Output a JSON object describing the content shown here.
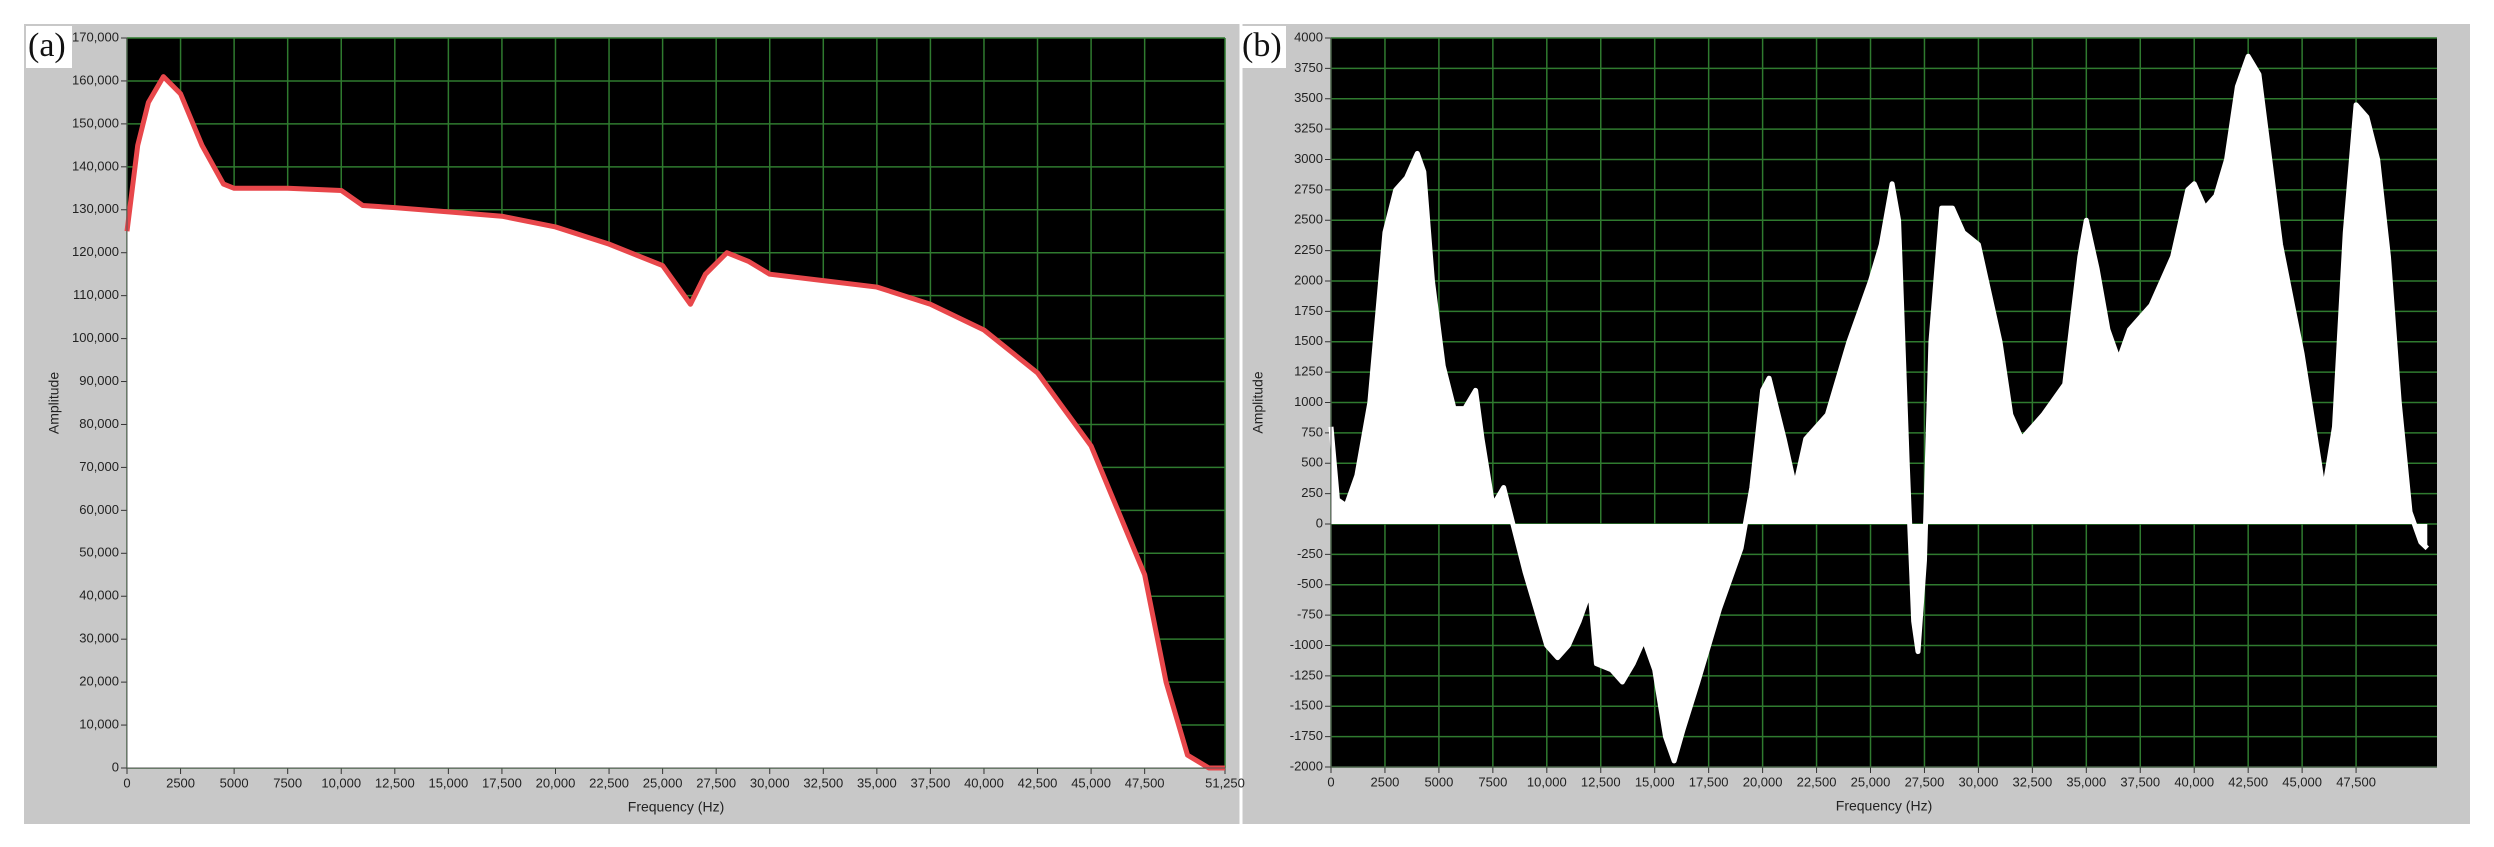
{
  "chart_data": [
    {
      "type": "area",
      "panel_label": "(a)",
      "xlabel": "Frequency (Hz)",
      "ylabel": "Amplitude",
      "background": "#000000",
      "grid": true,
      "grid_color": "#2f7a2f",
      "fill_color": "#ffffff",
      "line_color": "#e8474b",
      "xlim": [
        0,
        51250
      ],
      "ylim": [
        0,
        170000
      ],
      "xticks": [
        0,
        2500,
        5000,
        7500,
        {
          "value": 10000,
          "label": "10,000"
        },
        {
          "value": 12500,
          "label": "12,500"
        },
        {
          "value": 15000,
          "label": "15,000"
        },
        {
          "value": 17500,
          "label": "17,500"
        },
        {
          "value": 20000,
          "label": "20,000"
        },
        {
          "value": 22500,
          "label": "22,500"
        },
        {
          "value": 25000,
          "label": "25,000"
        },
        {
          "value": 27500,
          "label": "27,500"
        },
        {
          "value": 30000,
          "label": "30,000"
        },
        {
          "value": 32500,
          "label": "32,500"
        },
        {
          "value": 35000,
          "label": "35,000"
        },
        {
          "value": 37500,
          "label": "37,500"
        },
        {
          "value": 40000,
          "label": "40,000"
        },
        {
          "value": 42500,
          "label": "42,500"
        },
        {
          "value": 45000,
          "label": "45,000"
        },
        {
          "value": 47500,
          "label": "47,500"
        },
        {
          "value": 51250,
          "label": "51,250"
        }
      ],
      "yticks": [
        0,
        {
          "value": 10000,
          "label": "10,000"
        },
        {
          "value": 20000,
          "label": "20,000"
        },
        {
          "value": 30000,
          "label": "30,000"
        },
        {
          "value": 40000,
          "label": "40,000"
        },
        {
          "value": 50000,
          "label": "50,000"
        },
        {
          "value": 60000,
          "label": "60,000"
        },
        {
          "value": 70000,
          "label": "70,000"
        },
        {
          "value": 80000,
          "label": "80,000"
        },
        {
          "value": 90000,
          "label": "90,000"
        },
        {
          "value": 100000,
          "label": "100,000"
        },
        {
          "value": 110000,
          "label": "110,000"
        },
        {
          "value": 120000,
          "label": "120,000"
        },
        {
          "value": 130000,
          "label": "130,000"
        },
        {
          "value": 140000,
          "label": "140,000"
        },
        {
          "value": 150000,
          "label": "150,000"
        },
        {
          "value": 160000,
          "label": "160,000"
        },
        {
          "value": 170000,
          "label": "170,000"
        }
      ],
      "x": [
        0,
        500,
        1000,
        1700,
        2500,
        3500,
        4500,
        5000,
        7500,
        10000,
        11000,
        12500,
        15000,
        17500,
        20000,
        22500,
        25000,
        26300,
        27000,
        28000,
        29000,
        30000,
        32500,
        35000,
        37500,
        40000,
        42500,
        45000,
        47500,
        48500,
        49500,
        50500,
        51250
      ],
      "values": [
        125000,
        145000,
        155000,
        161000,
        157000,
        145000,
        136000,
        135000,
        135000,
        134500,
        131000,
        130500,
        129500,
        128500,
        126000,
        122000,
        117000,
        108000,
        115000,
        120000,
        118000,
        115000,
        113500,
        112000,
        108000,
        102000,
        92000,
        75000,
        45000,
        20000,
        3000,
        0,
        0
      ]
    },
    {
      "type": "area",
      "panel_label": "(b)",
      "xlabel": "Frequency (Hz)",
      "ylabel": "Amplitude",
      "background": "#000000",
      "grid": true,
      "grid_color": "#2f7a2f",
      "fill_color": "#ffffff",
      "line_color": "#ffffff",
      "xlim": [
        0,
        51250
      ],
      "ylim": [
        -2000,
        4000
      ],
      "xticks": [
        0,
        2500,
        5000,
        7500,
        {
          "value": 10000,
          "label": "10,000"
        },
        {
          "value": 12500,
          "label": "12,500"
        },
        {
          "value": 15000,
          "label": "15,000"
        },
        {
          "value": 17500,
          "label": "17,500"
        },
        {
          "value": 20000,
          "label": "20,000"
        },
        {
          "value": 22500,
          "label": "22,500"
        },
        {
          "value": 25000,
          "label": "25,000"
        },
        {
          "value": 27500,
          "label": "27,500"
        },
        {
          "value": 30000,
          "label": "30,000"
        },
        {
          "value": 32500,
          "label": "32,500"
        },
        {
          "value": 35000,
          "label": "35,000"
        },
        {
          "value": 37500,
          "label": "37,500"
        },
        {
          "value": 40000,
          "label": "40,000"
        },
        {
          "value": 42500,
          "label": "42,500"
        },
        {
          "value": 45000,
          "label": "45,000"
        },
        {
          "value": 47500,
          "label": "47,500"
        }
      ],
      "yticks": [
        -2000,
        -1750,
        -1500,
        -1250,
        -1000,
        -750,
        -500,
        -250,
        0,
        250,
        500,
        750,
        1000,
        1250,
        1500,
        1750,
        2000,
        2250,
        2500,
        2750,
        3000,
        3250,
        3500,
        3750,
        4000
      ],
      "x": [
        0,
        300,
        700,
        1200,
        1800,
        2500,
        3000,
        3500,
        4000,
        4300,
        4700,
        5200,
        5700,
        6200,
        6700,
        7000,
        7500,
        8000,
        8500,
        9000,
        9500,
        10000,
        10500,
        11000,
        11500,
        12000,
        12300,
        13000,
        13500,
        14000,
        14500,
        15000,
        15500,
        15900,
        16300,
        17000,
        17500,
        18000,
        18500,
        19000,
        19500,
        20000,
        20300,
        21000,
        21500,
        22000,
        23000,
        24000,
        25000,
        25500,
        26000,
        26300,
        26700,
        27000,
        27200,
        27500,
        27800,
        28300,
        28800,
        29300,
        30000,
        31000,
        31500,
        32000,
        33000,
        34000,
        34700,
        35000,
        35500,
        36000,
        36500,
        37000,
        38000,
        39000,
        39700,
        40000,
        40500,
        41000,
        41500,
        42000,
        42500,
        43000,
        43500,
        44000,
        45000,
        45800,
        46000,
        46500,
        47000,
        47500,
        48000,
        48500,
        49000,
        49500,
        50000,
        50500,
        50800
      ],
      "values": [
        800,
        200,
        150,
        400,
        1000,
        2400,
        2750,
        2850,
        3050,
        2900,
        2000,
        1300,
        950,
        950,
        1100,
        700,
        150,
        300,
        -50,
        -400,
        -700,
        -1000,
        -1100,
        -1000,
        -800,
        -550,
        -1150,
        -1200,
        -1300,
        -1150,
        -950,
        -1200,
        -1750,
        -1950,
        -1700,
        -1300,
        -1000,
        -700,
        -450,
        -200,
        300,
        1100,
        1200,
        700,
        300,
        700,
        900,
        1500,
        2000,
        2300,
        2800,
        2500,
        500,
        -800,
        -1050,
        -300,
        1500,
        2600,
        2600,
        2400,
        2300,
        1500,
        900,
        700,
        900,
        1150,
        2200,
        2500,
        2100,
        1600,
        1350,
        1600,
        1800,
        2200,
        2750,
        2800,
        2600,
        2700,
        3000,
        3600,
        3850,
        3700,
        3000,
        2300,
        1400,
        500,
        250,
        800,
        2400,
        3450,
        3350,
        3000,
        2200,
        1000,
        100,
        -150,
        -200
      ]
    }
  ]
}
